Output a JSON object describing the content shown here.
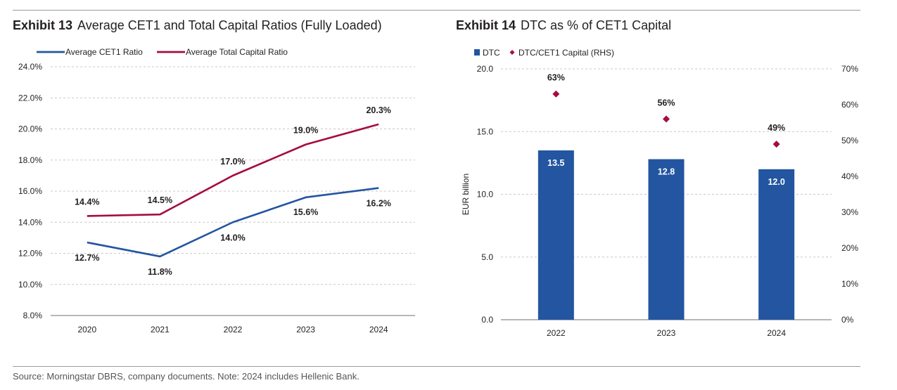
{
  "exhibit13": {
    "number": "Exhibit 13",
    "title": "Average CET1 and Total Capital Ratios (Fully Loaded)",
    "chart_data": {
      "type": "line",
      "categories": [
        "2020",
        "2021",
        "2022",
        "2023",
        "2024"
      ],
      "series": [
        {
          "name": "Average CET1 Ratio",
          "values": [
            12.7,
            11.8,
            14.0,
            15.6,
            16.2
          ],
          "labels": [
            "12.7%",
            "11.8%",
            "14.0%",
            "15.6%",
            "16.2%"
          ],
          "color": "#2355a0"
        },
        {
          "name": "Average Total Capital Ratio",
          "values": [
            14.4,
            14.5,
            17.0,
            19.0,
            20.3
          ],
          "labels": [
            "14.4%",
            "14.5%",
            "17.0%",
            "19.0%",
            "20.3%"
          ],
          "color": "#a50d3d"
        }
      ],
      "ylim": [
        8,
        24
      ],
      "yticks": [
        "8.0%",
        "10.0%",
        "12.0%",
        "14.0%",
        "16.0%",
        "18.0%",
        "20.0%",
        "22.0%",
        "24.0%"
      ],
      "grid": true,
      "legend": "top-left"
    }
  },
  "exhibit14": {
    "number": "Exhibit 14",
    "title": "DTC as % of CET1 Capital",
    "chart_data": {
      "type": "bar",
      "categories": [
        "2022",
        "2023",
        "2024"
      ],
      "series": [
        {
          "name": "DTC",
          "values": [
            13.5,
            12.8,
            12.0
          ],
          "labels": [
            "13.5",
            "12.8",
            "12.0"
          ],
          "color": "#2355a0",
          "axis": "left"
        },
        {
          "name": "DTC/CET1 Capital (RHS)",
          "values": [
            63,
            56,
            49
          ],
          "labels": [
            "63%",
            "56%",
            "49%"
          ],
          "color": "#a50d3d",
          "axis": "right",
          "marker": "diamond"
        }
      ],
      "ylabel": "EUR billion",
      "ylim": [
        0,
        20
      ],
      "yticks": [
        "0.0",
        "5.0",
        "10.0",
        "15.0",
        "20.0"
      ],
      "y2lim": [
        0,
        70
      ],
      "y2ticks": [
        "0%",
        "10%",
        "20%",
        "30%",
        "40%",
        "50%",
        "60%",
        "70%"
      ],
      "grid": true,
      "legend": "top-left"
    }
  },
  "source": "Source: Morningstar DBRS, company documents. Note: 2024 includes Hellenic Bank."
}
